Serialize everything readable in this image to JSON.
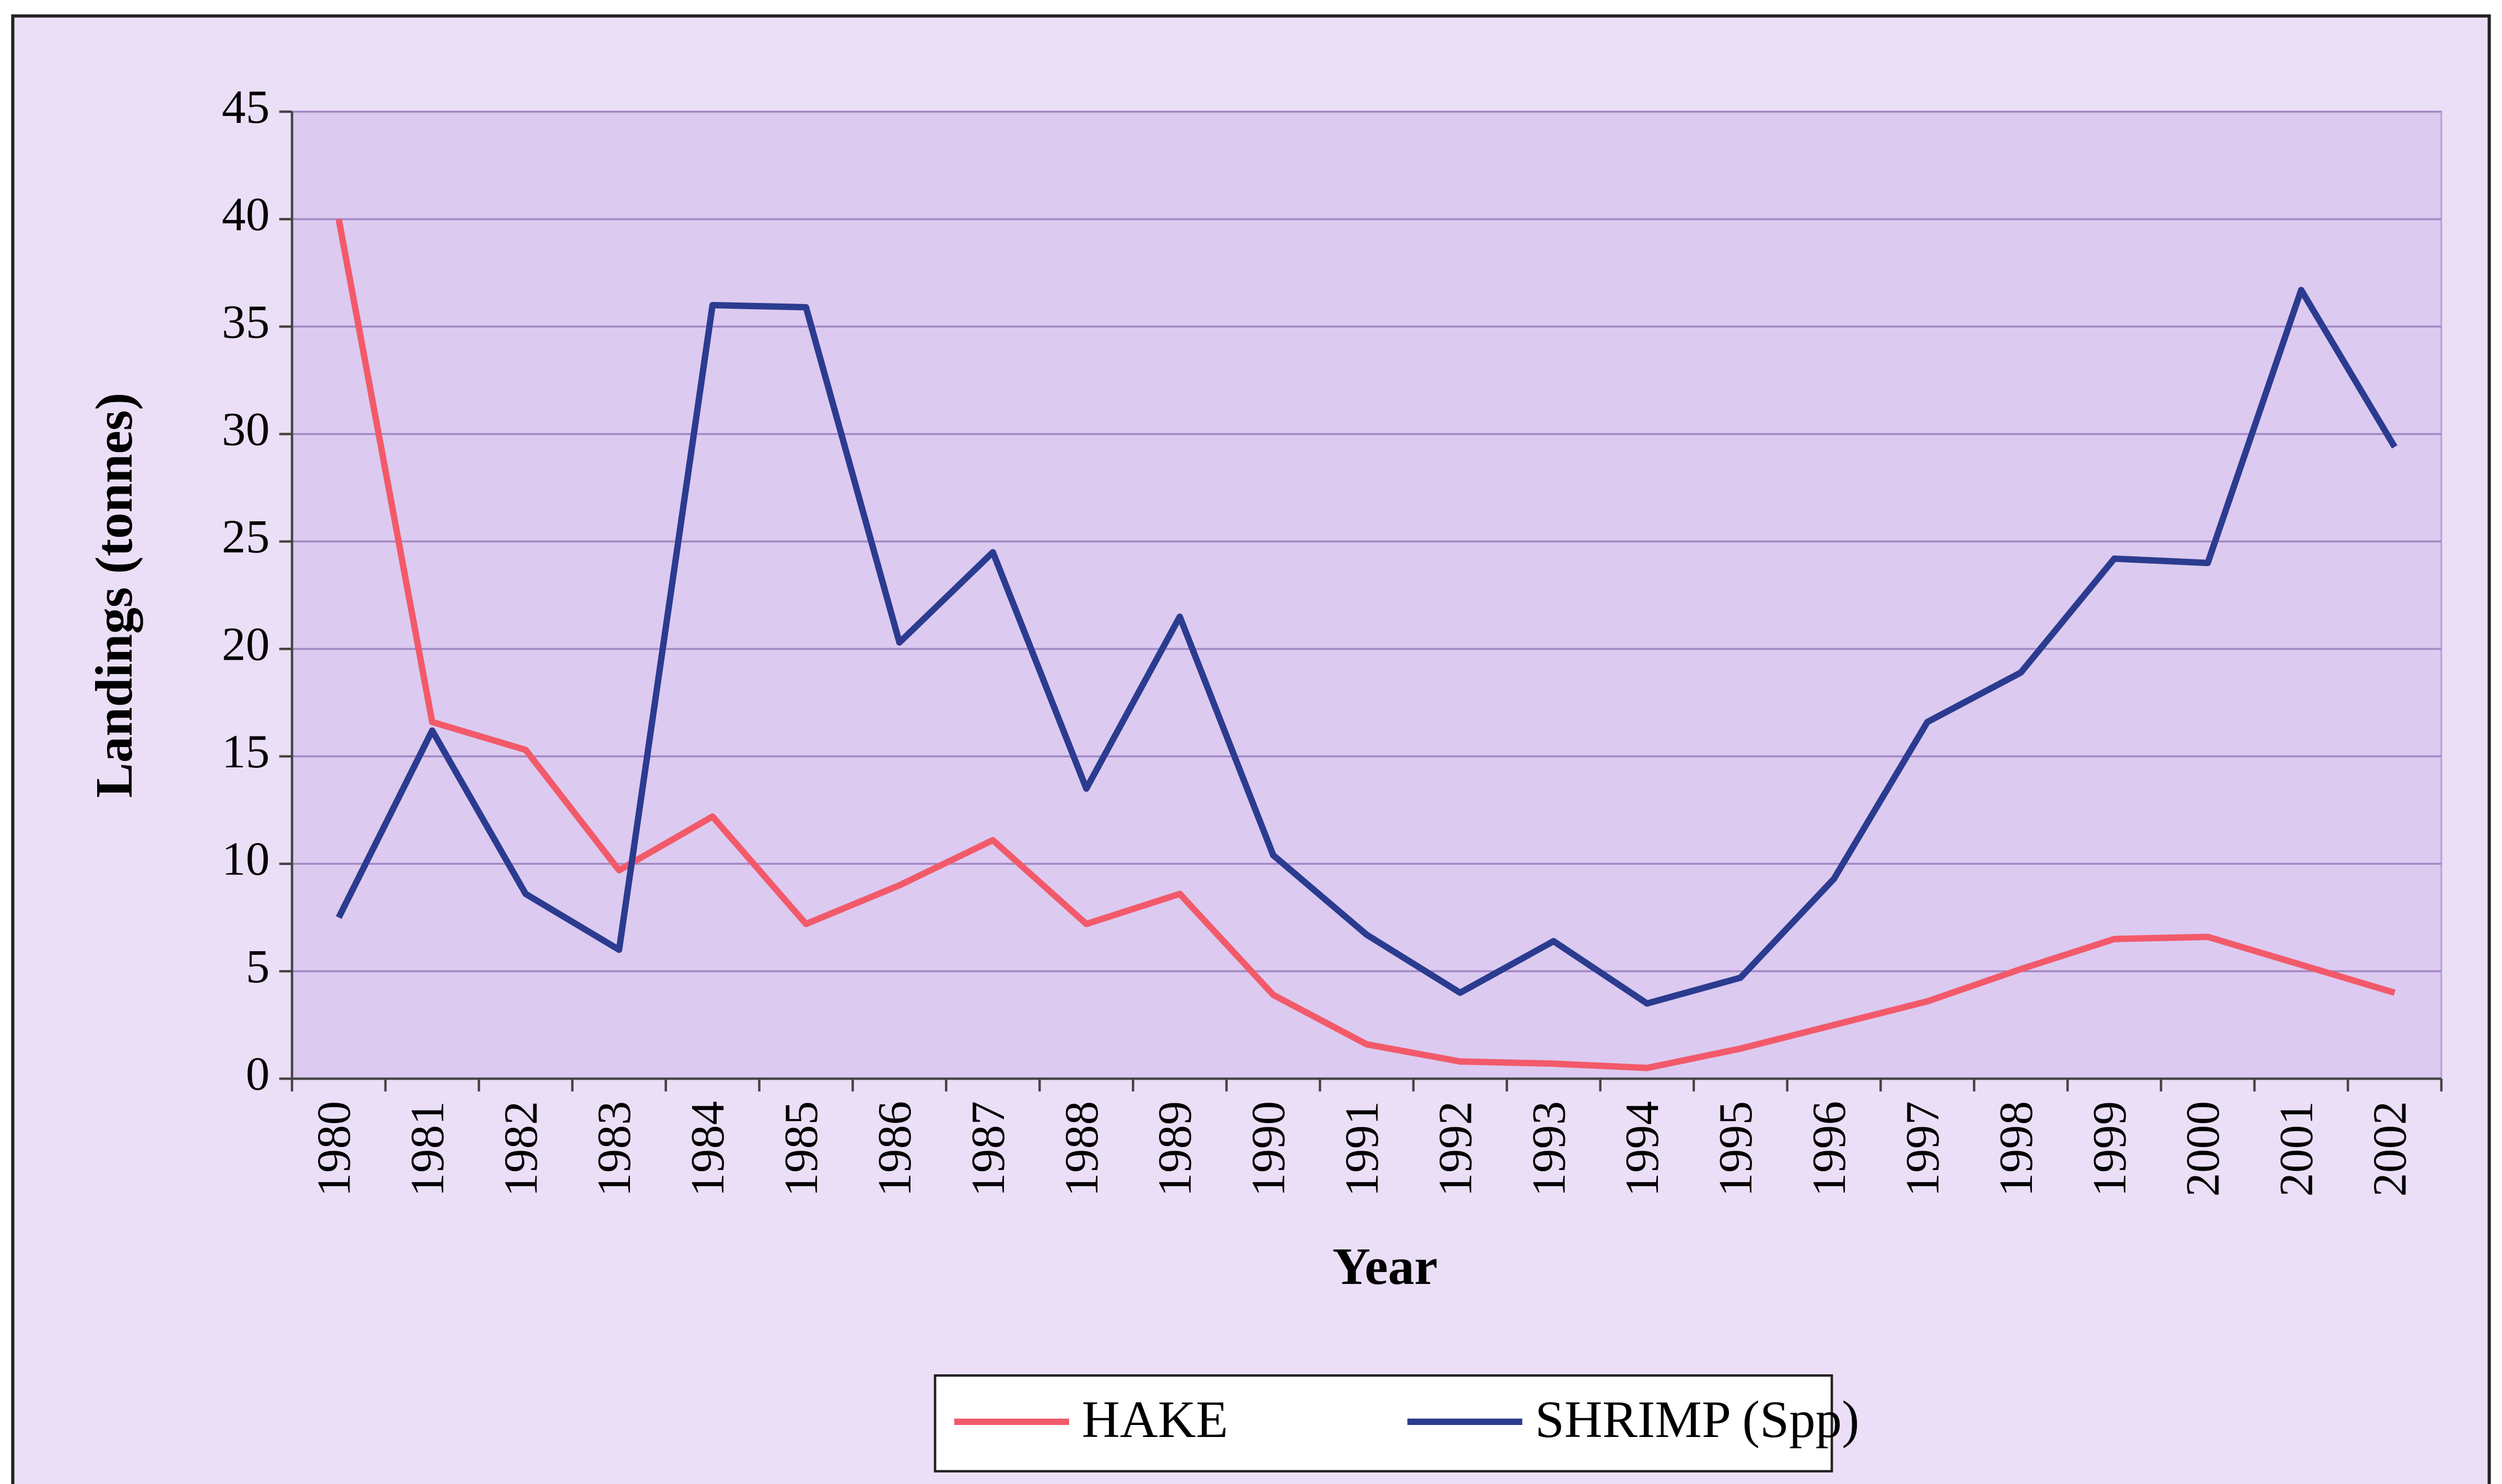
{
  "chart_data": {
    "type": "line",
    "x_label": "Year",
    "y_label": "Landings (tonnes)",
    "categories": [
      "1980",
      "1981",
      "1982",
      "1983",
      "1984",
      "1985",
      "1986",
      "1987",
      "1988",
      "1989",
      "1990",
      "1991",
      "1992",
      "1993",
      "1994",
      "1995",
      "1996",
      "1997",
      "1998",
      "1999",
      "2000",
      "2001",
      "2002"
    ],
    "series": [
      {
        "name": "HAKE",
        "color": "#f25a6a",
        "values": [
          40,
          16.6,
          15.3,
          9.7,
          12.2,
          7.2,
          9.0,
          11.1,
          7.2,
          8.6,
          3.9,
          1.6,
          0.8,
          0.7,
          0.5,
          1.4,
          2.5,
          3.6,
          5.1,
          6.5,
          6.6,
          5.3,
          4.0
        ]
      },
      {
        "name": "SHRIMP (Spp)",
        "color": "#2b3b8f",
        "values": [
          7.5,
          16.2,
          8.6,
          6.0,
          36.0,
          35.9,
          20.3,
          24.5,
          13.5,
          21.5,
          10.4,
          6.7,
          4.0,
          6.4,
          3.5,
          4.7,
          9.3,
          16.6,
          18.9,
          24.2,
          24.0,
          36.7,
          29.4
        ]
      }
    ],
    "ylim": [
      0,
      45
    ],
    "yticks": [
      0,
      5,
      10,
      15,
      20,
      25,
      30,
      35,
      40,
      45
    ],
    "grid": true,
    "legend": "bottom"
  }
}
